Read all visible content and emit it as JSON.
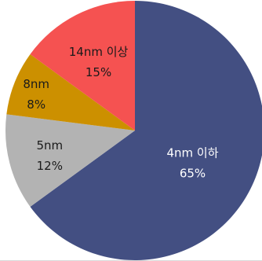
{
  "chart_data": {
    "type": "pie",
    "slices": [
      {
        "label": "4nm 이하",
        "percent_label": "65%",
        "value": 65,
        "color": "#434f82",
        "text_color": "#ffffff"
      },
      {
        "label": "5nm",
        "percent_label": "12%",
        "value": 12,
        "color": "#b3b3b3",
        "text_color": "#1a1a1a"
      },
      {
        "label": "8nm",
        "percent_label": "8%",
        "value": 8,
        "color": "#cc9000",
        "text_color": "#1a1a1a"
      },
      {
        "label": "14nm 이상",
        "percent_label": "15%",
        "value": 15,
        "color": "#f55251",
        "text_color": "#1a1a1a"
      }
    ],
    "start": "12 o'clock",
    "direction": "clockwise",
    "legend": "none"
  }
}
